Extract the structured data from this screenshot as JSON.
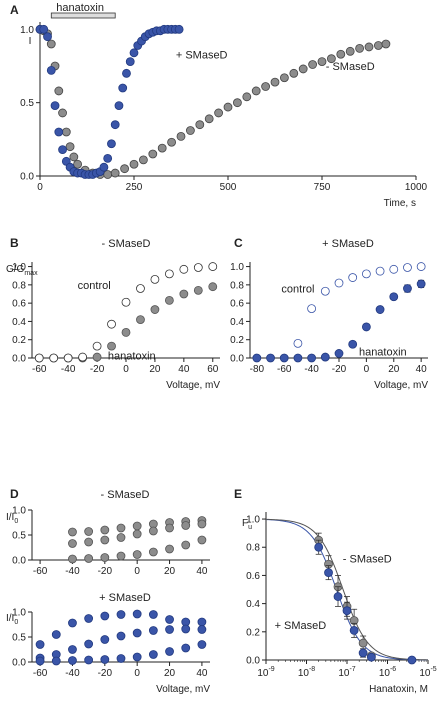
{
  "colors": {
    "blue": "#3a55a8",
    "gray": "#8c8c8c",
    "open_edge_black": "#333333",
    "open_edge_blue": "#3a55a8",
    "axis": "#222222"
  },
  "chart_data": [
    {
      "id": "A",
      "type": "scatter",
      "panel_label": "A",
      "ylabel": "I",
      "xlabel": "Time, s",
      "xlim": [
        0,
        1000
      ],
      "ylim": [
        0,
        1.05
      ],
      "xticks": [
        "0",
        "250",
        "500",
        "750",
        "1000"
      ],
      "yticks": [
        "0.0",
        "0.5",
        "1.0"
      ],
      "bar_label": "hanatoxin",
      "bar_range": [
        30,
        200
      ],
      "series": [
        {
          "name": "+ SMaseD",
          "color": "blue",
          "x": [
            0,
            10,
            20,
            30,
            40,
            50,
            60,
            70,
            80,
            90,
            100,
            110,
            120,
            130,
            140,
            150,
            160,
            170,
            180,
            190,
            200,
            210,
            220,
            230,
            240,
            250,
            260,
            270,
            280,
            290,
            300,
            310,
            320,
            330,
            340,
            350,
            360,
            370
          ],
          "y": [
            1.0,
            1.0,
            0.95,
            0.72,
            0.48,
            0.3,
            0.18,
            0.1,
            0.06,
            0.03,
            0.02,
            0.02,
            0.01,
            0.01,
            0.01,
            0.02,
            0.03,
            0.06,
            0.12,
            0.22,
            0.35,
            0.48,
            0.6,
            0.7,
            0.78,
            0.84,
            0.89,
            0.92,
            0.95,
            0.97,
            0.98,
            0.99,
            0.99,
            1.0,
            1.0,
            1.0,
            1.0,
            1.0
          ]
        },
        {
          "name": "- SMaseD",
          "color": "gray",
          "x": [
            0,
            10,
            20,
            30,
            40,
            50,
            60,
            70,
            80,
            90,
            100,
            120,
            140,
            160,
            180,
            200,
            225,
            250,
            275,
            300,
            325,
            350,
            375,
            400,
            425,
            450,
            475,
            500,
            525,
            550,
            575,
            600,
            625,
            650,
            675,
            700,
            725,
            750,
            775,
            800,
            825,
            850,
            875,
            900,
            920
          ],
          "y": [
            1.0,
            0.99,
            0.97,
            0.9,
            0.75,
            0.58,
            0.43,
            0.3,
            0.2,
            0.13,
            0.08,
            0.04,
            0.02,
            0.01,
            0.01,
            0.02,
            0.05,
            0.08,
            0.11,
            0.15,
            0.19,
            0.23,
            0.27,
            0.31,
            0.35,
            0.39,
            0.43,
            0.47,
            0.5,
            0.54,
            0.58,
            0.61,
            0.64,
            0.67,
            0.7,
            0.73,
            0.76,
            0.78,
            0.8,
            0.83,
            0.85,
            0.87,
            0.88,
            0.89,
            0.9
          ]
        }
      ],
      "annotations": {
        "plus": "+ SMaseD",
        "minus": "- SMaseD"
      }
    },
    {
      "id": "B",
      "type": "scatter",
      "panel_label": "B",
      "title": "- SMaseD",
      "ylabel": "G/G",
      "ylabel_sub": "max",
      "xlabel": "Voltage, mV",
      "xlim": [
        -65,
        65
      ],
      "ylim": [
        0,
        1.05
      ],
      "xticks": [
        "-60",
        "-40",
        "-20",
        "0",
        "20",
        "40",
        "60"
      ],
      "yticks": [
        "0.0",
        "0.2",
        "0.4",
        "0.6",
        "0.8",
        "1.0"
      ],
      "series": [
        {
          "name": "control",
          "style": "open",
          "x": [
            -60,
            -50,
            -40,
            -30,
            -20,
            -10,
            0,
            10,
            20,
            30,
            40,
            50,
            60
          ],
          "y": [
            0.0,
            0.0,
            0.0,
            0.01,
            0.13,
            0.37,
            0.61,
            0.76,
            0.86,
            0.92,
            0.97,
            0.99,
            1.0
          ],
          "err": [
            0,
            0,
            0,
            0,
            0,
            0.02,
            0.02,
            0.03,
            0.03,
            0.03,
            0.03,
            0.02,
            0.02
          ]
        },
        {
          "name": "hanatoxin",
          "style": "gray",
          "x": [
            -60,
            -50,
            -40,
            -30,
            -20,
            -10,
            0,
            10,
            20,
            30,
            40,
            50,
            60
          ],
          "y": [
            0.0,
            0.0,
            0.0,
            0.0,
            0.01,
            0.13,
            0.28,
            0.42,
            0.53,
            0.63,
            0.7,
            0.74,
            0.78
          ],
          "err": [
            0,
            0,
            0,
            0,
            0,
            0.01,
            0.02,
            0.02,
            0.02,
            0.02,
            0.02,
            0.02,
            0.02
          ]
        }
      ],
      "annotations": {
        "control": "control",
        "hanatoxin": "hanatoxin"
      }
    },
    {
      "id": "C",
      "type": "scatter",
      "panel_label": "C",
      "title": "+ SMaseD",
      "ylabel": "",
      "xlabel": "Voltage, mV",
      "xlim": [
        -85,
        45
      ],
      "ylim": [
        0,
        1.05
      ],
      "xticks": [
        "-80",
        "-60",
        "-40",
        "-20",
        "0",
        "20",
        "40"
      ],
      "yticks": [
        "0.0",
        "0.2",
        "0.4",
        "0.6",
        "0.8",
        "1.0"
      ],
      "series": [
        {
          "name": "control",
          "style": "openblue",
          "x": [
            -50,
            -40,
            -30,
            -20,
            -10,
            0,
            10,
            20,
            30,
            40
          ],
          "y": [
            0.16,
            0.54,
            0.73,
            0.82,
            0.88,
            0.92,
            0.95,
            0.97,
            0.99,
            1.0
          ],
          "err": [
            0,
            0,
            0,
            0,
            0.01,
            0.01,
            0.01,
            0.01,
            0.01,
            0.01
          ]
        },
        {
          "name": "hanatoxin",
          "style": "blue",
          "x": [
            -80,
            -70,
            -60,
            -50,
            -40,
            -30,
            -20,
            -10,
            0,
            10,
            20,
            30,
            40
          ],
          "y": [
            0.0,
            0.0,
            0.0,
            0.0,
            0.0,
            0.01,
            0.05,
            0.15,
            0.34,
            0.53,
            0.67,
            0.76,
            0.81
          ],
          "err": [
            0,
            0,
            0,
            0,
            0,
            0,
            0.01,
            0.01,
            0.02,
            0.02,
            0.03,
            0.04,
            0.04
          ]
        }
      ],
      "annotations": {
        "control": "control",
        "hanatoxin": "hanatoxin"
      }
    },
    {
      "id": "D1",
      "type": "scatter",
      "panel_label": "D",
      "title": "- SMaseD",
      "ylabel": "I/I",
      "ylabel_sub": "0",
      "xlim": [
        -65,
        45
      ],
      "ylim": [
        0,
        1.0
      ],
      "xticks": [
        "-60",
        "-40",
        "-20",
        "0",
        "20",
        "40"
      ],
      "yticks": [
        "0.0",
        "0.5",
        "1.0"
      ],
      "series": [
        {
          "name": "set1",
          "style": "gray",
          "x": [
            -40,
            -30,
            -20,
            -10,
            0,
            10,
            20,
            30,
            40
          ],
          "y": [
            0.56,
            0.57,
            0.6,
            0.64,
            0.68,
            0.72,
            0.75,
            0.77,
            0.79
          ],
          "err": [
            0.05,
            0.05,
            0.05,
            0.05,
            0.05,
            0.05,
            0.05,
            0.05,
            0.05
          ]
        },
        {
          "name": "set2",
          "style": "gray",
          "x": [
            -40,
            -30,
            -20,
            -10,
            0,
            10,
            20,
            30,
            40
          ],
          "y": [
            0.33,
            0.36,
            0.4,
            0.45,
            0.52,
            0.58,
            0.64,
            0.69,
            0.72
          ],
          "err": [
            0.04,
            0.04,
            0.04,
            0.04,
            0.04,
            0.04,
            0.04,
            0.04,
            0.04
          ]
        },
        {
          "name": "set3",
          "style": "gray",
          "x": [
            -40,
            -30,
            -20,
            -10,
            0,
            10,
            20,
            30,
            40
          ],
          "y": [
            0.02,
            0.03,
            0.05,
            0.08,
            0.11,
            0.16,
            0.22,
            0.3,
            0.4
          ],
          "err": [
            0,
            0,
            0,
            0.01,
            0.01,
            0.01,
            0.02,
            0.02,
            0.02
          ]
        }
      ]
    },
    {
      "id": "D2",
      "type": "scatter",
      "panel_label": "",
      "title": "+ SMaseD",
      "ylabel": "I/I",
      "ylabel_sub": "0",
      "xlabel": "Voltage, mV",
      "xlim": [
        -65,
        45
      ],
      "ylim": [
        0,
        1.0
      ],
      "xticks": [
        "-60",
        "-40",
        "-20",
        "0",
        "20",
        "40"
      ],
      "yticks": [
        "0.0",
        "0.5",
        "1.0"
      ],
      "series": [
        {
          "name": "set1",
          "style": "blue",
          "x": [
            -60,
            -50,
            -40,
            -30,
            -20,
            -10,
            0,
            10,
            20,
            30,
            40
          ],
          "y": [
            0.35,
            0.55,
            0.78,
            0.87,
            0.92,
            0.95,
            0.96,
            0.95,
            0.85,
            0.8,
            0.8
          ],
          "err": [
            0.05,
            0.05,
            0.05,
            0.05,
            0.05,
            0.04,
            0.04,
            0.04,
            0.05,
            0.05,
            0.05
          ]
        },
        {
          "name": "set2",
          "style": "blue",
          "x": [
            -60,
            -50,
            -40,
            -30,
            -20,
            -10,
            0,
            10,
            20,
            30,
            40
          ],
          "y": [
            0.08,
            0.15,
            0.25,
            0.36,
            0.45,
            0.52,
            0.58,
            0.63,
            0.65,
            0.66,
            0.65
          ],
          "err": [
            0.03,
            0.03,
            0.03,
            0.03,
            0.03,
            0.03,
            0.03,
            0.03,
            0.03,
            0.03,
            0.03
          ]
        },
        {
          "name": "set3",
          "style": "blue",
          "x": [
            -60,
            -50,
            -40,
            -30,
            -20,
            -10,
            0,
            10,
            20,
            30,
            40
          ],
          "y": [
            0.02,
            0.02,
            0.03,
            0.04,
            0.05,
            0.07,
            0.1,
            0.15,
            0.21,
            0.28,
            0.35
          ],
          "err": [
            0,
            0,
            0,
            0,
            0,
            0.01,
            0.01,
            0.01,
            0.02,
            0.02,
            0.02
          ]
        }
      ]
    },
    {
      "id": "E",
      "type": "scatter",
      "panel_label": "E",
      "ylabel": "F",
      "ylabel_sub": "u",
      "xlabel": "Hanatoxin, M",
      "log_x": true,
      "xlim_log10": [
        -9,
        -5
      ],
      "ylim": [
        0,
        1.05
      ],
      "xticks": [
        {
          "b": "10",
          "e": "-9"
        },
        {
          "b": "10",
          "e": "-8"
        },
        {
          "b": "10",
          "e": "-7"
        },
        {
          "b": "10",
          "e": "-6"
        },
        {
          "b": "10",
          "e": "-5"
        }
      ],
      "yticks": [
        "0.0",
        "0.2",
        "0.4",
        "0.6",
        "0.8",
        "1.0"
      ],
      "fits": [
        {
          "name": "blue",
          "kd": 5.5e-08
        },
        {
          "name": "gray",
          "kd": 8e-08
        }
      ],
      "series": [
        {
          "name": "- SMaseD",
          "style": "gray",
          "x": [
            2e-08,
            3.5e-08,
            6e-08,
            1e-07,
            1.5e-07,
            2.5e-07,
            4e-07
          ],
          "y": [
            0.85,
            0.68,
            0.52,
            0.38,
            0.28,
            0.12,
            0.03
          ],
          "err": [
            0.05,
            0.06,
            0.08,
            0.07,
            0.08,
            0.05,
            0.02
          ]
        },
        {
          "name": "+ SMaseD",
          "style": "blue",
          "x": [
            2e-08,
            3.5e-08,
            6e-08,
            1e-07,
            1.5e-07,
            2.5e-07,
            4e-07,
            4e-06
          ],
          "y": [
            0.8,
            0.62,
            0.45,
            0.35,
            0.21,
            0.05,
            0.02,
            0.0
          ],
          "err": [
            0.05,
            0.05,
            0.07,
            0.06,
            0.05,
            0.03,
            0.01,
            0
          ]
        }
      ],
      "annotations": {
        "minus": "- SMaseD",
        "plus": "+ SMaseD"
      }
    }
  ]
}
